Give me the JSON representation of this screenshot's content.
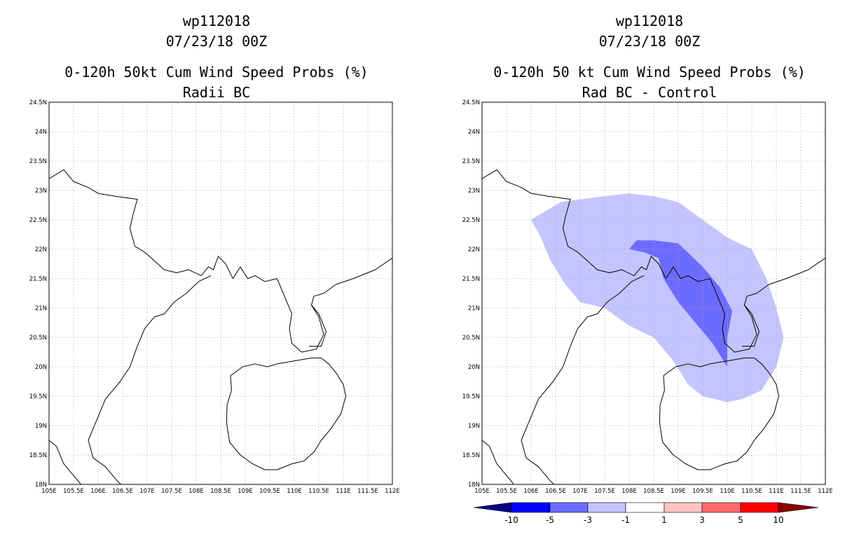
{
  "panels": [
    {
      "id": "left",
      "title_line1": "wp112018",
      "title_line2": "07/23/18 00Z",
      "title_line3": "0-120h 50kt Cum Wind Speed Probs (%)",
      "title_line4": "Radii BC"
    },
    {
      "id": "right",
      "title_line1": "wp112018",
      "title_line2": "07/23/18 00Z",
      "title_line3": "0-120h 50 kt Cum Wind Speed Probs (%)",
      "title_line4": "Rad BC - Control"
    }
  ],
  "axes": {
    "lon_labels": [
      "105E",
      "105.5E",
      "106E",
      "106.5E",
      "107E",
      "107.5E",
      "108E",
      "108.5E",
      "109E",
      "109.5E",
      "110E",
      "110.5E",
      "111E",
      "111.5E",
      "112E"
    ],
    "lat_labels": [
      "24.5N",
      "24N",
      "23.5N",
      "23N",
      "22.5N",
      "22N",
      "21.5N",
      "21N",
      "20.5N",
      "20N",
      "19.5N",
      "19N",
      "18.5N",
      "18N"
    ],
    "lon_range": [
      105,
      112
    ],
    "lat_range": [
      18,
      24.5
    ]
  },
  "colorbar": {
    "labels": [
      "-10",
      "-5",
      "-3",
      "-1",
      "1",
      "3",
      "5",
      "10"
    ],
    "colors": [
      "#00008b",
      "#0000ff",
      "#6b6bff",
      "#c4c4ff",
      "#ffffff",
      "#ffc4c4",
      "#ff6b6b",
      "#ff0000",
      "#8b0000"
    ]
  },
  "map_data": {
    "fill_light_color": "#c4c4ff",
    "fill_medium_color": "#6b6bff",
    "region_light_-3_to_-1": [
      [
        106.0,
        22.5
      ],
      [
        106.6,
        22.8
      ],
      [
        107.0,
        22.85
      ],
      [
        107.5,
        22.9
      ],
      [
        108.0,
        22.95
      ],
      [
        108.5,
        22.9
      ],
      [
        109.0,
        22.8
      ],
      [
        109.5,
        22.5
      ],
      [
        110.0,
        22.2
      ],
      [
        110.5,
        22.0
      ],
      [
        110.8,
        21.5
      ],
      [
        111.0,
        21.0
      ],
      [
        111.15,
        20.5
      ],
      [
        111.0,
        20.0
      ],
      [
        110.7,
        19.6
      ],
      [
        110.3,
        19.45
      ],
      [
        110.0,
        19.4
      ],
      [
        109.5,
        19.5
      ],
      [
        109.2,
        19.7
      ],
      [
        108.9,
        20.1
      ],
      [
        108.5,
        20.5
      ],
      [
        108.0,
        20.7
      ],
      [
        107.5,
        21.0
      ],
      [
        107.0,
        21.1
      ],
      [
        106.7,
        21.4
      ],
      [
        106.4,
        21.8
      ],
      [
        106.2,
        22.2
      ],
      [
        106.0,
        22.5
      ]
    ],
    "region_medium_-5_to_-3": [
      [
        108.0,
        22.0
      ],
      [
        108.15,
        22.15
      ],
      [
        108.5,
        22.15
      ],
      [
        109.0,
        22.1
      ],
      [
        109.5,
        21.7
      ],
      [
        109.85,
        21.35
      ],
      [
        110.1,
        20.95
      ],
      [
        110.0,
        20.5
      ],
      [
        110.0,
        20.0
      ],
      [
        109.7,
        20.4
      ],
      [
        109.3,
        20.8
      ],
      [
        109.0,
        21.1
      ],
      [
        108.7,
        21.5
      ],
      [
        108.6,
        21.85
      ],
      [
        108.3,
        21.95
      ],
      [
        108.0,
        22.0
      ]
    ]
  }
}
